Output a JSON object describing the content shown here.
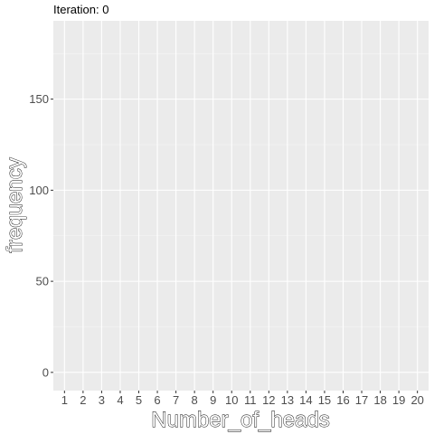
{
  "chart_data": {
    "type": "bar",
    "title": "Iteration: 0",
    "xlabel": "Number_of_heads",
    "ylabel": "frequency",
    "categories": [
      "1",
      "2",
      "3",
      "4",
      "5",
      "6",
      "7",
      "8",
      "9",
      "10",
      "11",
      "12",
      "13",
      "14",
      "15",
      "16",
      "17",
      "18",
      "19",
      "20"
    ],
    "values": [
      0,
      0,
      0,
      0,
      0,
      0,
      0,
      0,
      0,
      0,
      0,
      0,
      0,
      0,
      0,
      0,
      0,
      0,
      0,
      0
    ],
    "ylim": [
      -10,
      193
    ],
    "yticks": [
      0,
      50,
      100,
      150
    ],
    "grid": true,
    "colors": {
      "panel_background": "#ebebeb",
      "grid_major": "#ffffff",
      "grid_minor": "#f5f5f5",
      "tick_text": "#4d4d4d",
      "bar_fill": "#595959"
    }
  }
}
